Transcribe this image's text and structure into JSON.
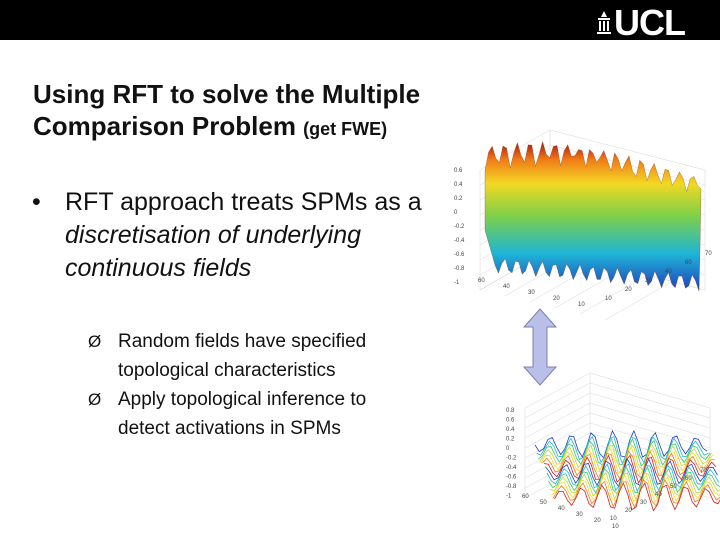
{
  "header": {
    "logo_text": "UCL",
    "bar_color": "#000000"
  },
  "title": {
    "main": "Using RFT to solve the Multiple Comparison Problem",
    "suffix": "(get FWE)"
  },
  "bullet": {
    "marker": "•",
    "text_plain": "RFT approach treats SPMs as a ",
    "text_italic": "discretisation of underlying continuous fields"
  },
  "sub_bullets": [
    {
      "marker": "Ø",
      "text": "Random fields have specified topological characteristics"
    },
    {
      "marker": "Ø",
      "text": "Apply topological inference to detect activations in SPMs"
    }
  ],
  "plot_top": {
    "z_ticks": [
      "0.6",
      "0.4",
      "0.2",
      "0",
      "-0.2",
      "-0.4",
      "-0.6",
      "-0.8",
      "-1"
    ],
    "x_ticks": [
      "60",
      "40",
      "30",
      "20",
      "10"
    ],
    "y_ticks": [
      "70",
      "60",
      "40",
      "30",
      "20",
      "10"
    ]
  },
  "plot_bottom": {
    "z_ticks": [
      "0.8",
      "0.6",
      "0.4",
      "0.2",
      "0",
      "-0.2",
      "-0.4",
      "-0.6",
      "-0.8",
      "-1"
    ],
    "x_ticks": [
      "60",
      "50",
      "40",
      "30",
      "20",
      "10"
    ],
    "y_ticks": [
      "70",
      "60",
      "50",
      "40",
      "30",
      "20",
      "10"
    ]
  },
  "arrow_color": "#b9bfe8"
}
